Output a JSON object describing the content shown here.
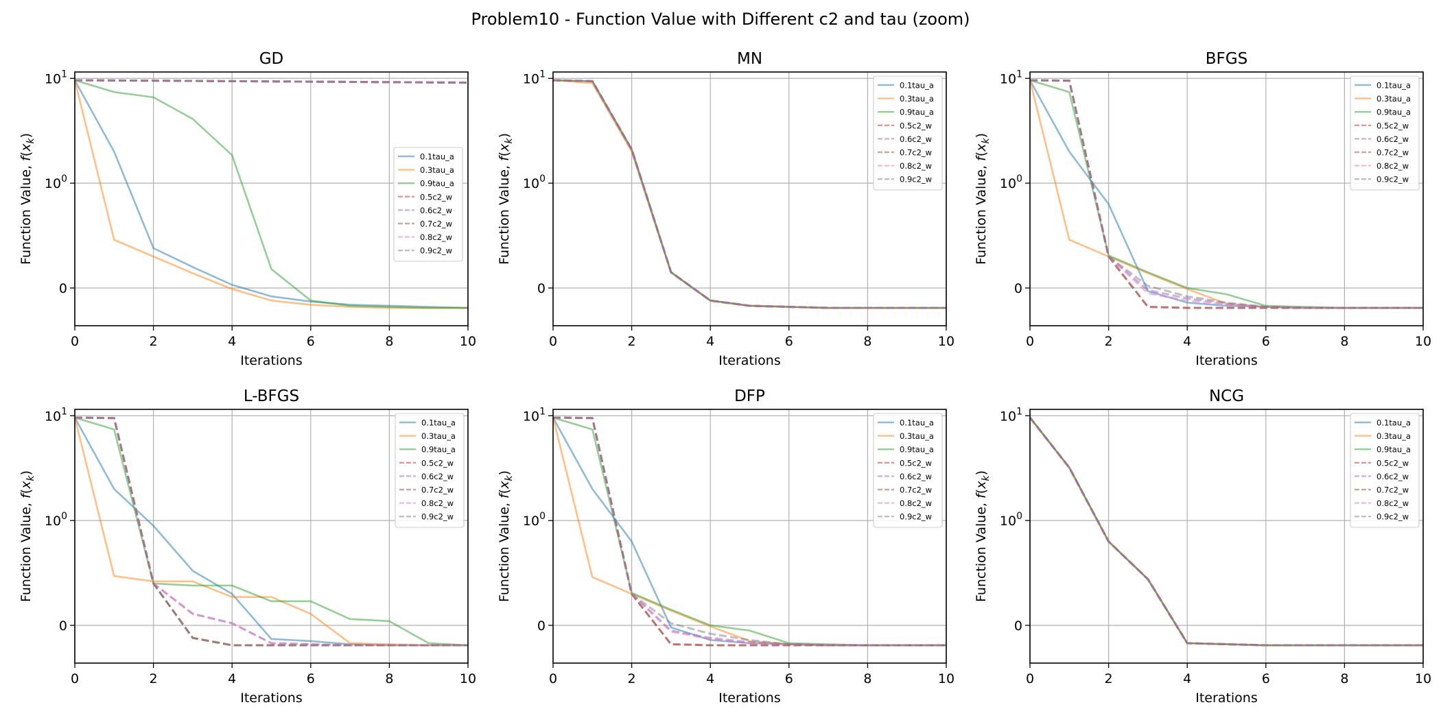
{
  "figure": {
    "title": "Problem10 - Function Value with Different c2 and tau (zoom)"
  },
  "colors": {
    "0.1tau_a": "#1f77b4",
    "0.3tau_a": "#ff7f0e",
    "0.9tau_a": "#2ca02c",
    "0.5c2_w": "#d62728",
    "0.6c2_w": "#9467bd",
    "0.7c2_w": "#8c564b",
    "0.8c2_w": "#e377c2",
    "0.9c2_w": "#7f7f7f"
  },
  "chart_data": [
    {
      "type": "line",
      "title": "GD",
      "xlabel": "Iterations",
      "ylabel": "Function Value, f(x_k)",
      "yscale": "symlog",
      "xlim": [
        0,
        10
      ],
      "xticks": [
        "0",
        "2",
        "4",
        "6",
        "8",
        "10"
      ],
      "yticks": [
        "0",
        "10^0",
        "10^1"
      ],
      "grid": true,
      "legend": "center-right",
      "x": [
        0,
        1,
        2,
        3,
        4,
        5,
        6,
        7,
        8,
        9,
        10
      ],
      "series": [
        {
          "name": "0.1tau_a",
          "style": "solid",
          "values": [
            9.6,
            2.0,
            0.38,
            0.2,
            0.03,
            -0.08,
            -0.13,
            -0.16,
            -0.17,
            -0.18,
            -0.19
          ]
        },
        {
          "name": "0.3tau_a",
          "style": "solid",
          "values": [
            9.6,
            0.46,
            0.3,
            0.14,
            -0.01,
            -0.12,
            -0.16,
            -0.18,
            -0.19,
            -0.19,
            -0.19
          ]
        },
        {
          "name": "0.9tau_a",
          "style": "solid",
          "values": [
            9.6,
            7.4,
            6.6,
            4.1,
            1.85,
            0.18,
            -0.12,
            -0.17,
            -0.18,
            -0.19,
            -0.19
          ]
        },
        {
          "name": "0.5c2_w",
          "style": "dashed",
          "values": [
            9.6,
            9.55,
            9.5,
            9.45,
            9.4,
            9.35,
            9.3,
            9.25,
            9.2,
            9.15,
            9.1
          ]
        },
        {
          "name": "0.6c2_w",
          "style": "dashed",
          "values": [
            9.6,
            9.55,
            9.5,
            9.45,
            9.4,
            9.35,
            9.3,
            9.25,
            9.2,
            9.15,
            9.1
          ]
        },
        {
          "name": "0.7c2_w",
          "style": "dashed",
          "values": [
            9.6,
            9.55,
            9.5,
            9.45,
            9.4,
            9.35,
            9.3,
            9.25,
            9.2,
            9.15,
            9.1
          ]
        },
        {
          "name": "0.8c2_w",
          "style": "dashed",
          "values": [
            9.6,
            9.55,
            9.5,
            9.45,
            9.4,
            9.35,
            9.3,
            9.25,
            9.2,
            9.15,
            9.1
          ]
        },
        {
          "name": "0.9c2_w",
          "style": "dashed",
          "values": [
            9.6,
            9.55,
            9.5,
            9.45,
            9.4,
            9.35,
            9.3,
            9.25,
            9.2,
            9.15,
            9.1
          ]
        }
      ]
    },
    {
      "type": "line",
      "title": "MN",
      "xlabel": "Iterations",
      "ylabel": "Function Value, f(x_k)",
      "yscale": "symlog",
      "xlim": [
        0,
        10
      ],
      "xticks": [
        "0",
        "2",
        "4",
        "6",
        "8",
        "10"
      ],
      "yticks": [
        "0",
        "10^0",
        "10^1"
      ],
      "grid": true,
      "legend": "top-right",
      "x": [
        0,
        1,
        2,
        3,
        4,
        5,
        6,
        7,
        8,
        9,
        10
      ],
      "series": [
        {
          "name": "0.1tau_a",
          "style": "solid",
          "values": [
            9.6,
            9.4,
            2.1,
            0.15,
            -0.12,
            -0.17,
            -0.18,
            -0.19,
            -0.19,
            -0.19,
            -0.19
          ]
        },
        {
          "name": "0.3tau_a",
          "style": "solid",
          "values": [
            9.6,
            9.0,
            2.0,
            0.15,
            -0.12,
            -0.17,
            -0.18,
            -0.19,
            -0.19,
            -0.19,
            -0.19
          ]
        },
        {
          "name": "0.9tau_a",
          "style": "solid",
          "values": [
            9.6,
            9.4,
            2.1,
            0.15,
            -0.12,
            -0.17,
            -0.18,
            -0.19,
            -0.19,
            -0.19,
            -0.19
          ]
        },
        {
          "name": "0.5c2_w",
          "style": "dashed",
          "values": [
            9.6,
            9.4,
            2.1,
            0.15,
            -0.12,
            -0.17,
            -0.18,
            -0.19,
            -0.19,
            -0.19,
            -0.19
          ]
        },
        {
          "name": "0.6c2_w",
          "style": "dashed",
          "values": [
            9.6,
            9.4,
            2.1,
            0.15,
            -0.12,
            -0.17,
            -0.18,
            -0.19,
            -0.19,
            -0.19,
            -0.19
          ]
        },
        {
          "name": "0.7c2_w",
          "style": "dashed",
          "values": [
            9.6,
            9.4,
            2.1,
            0.15,
            -0.12,
            -0.17,
            -0.18,
            -0.19,
            -0.19,
            -0.19,
            -0.19
          ]
        },
        {
          "name": "0.8c2_w",
          "style": "dashed",
          "values": [
            9.6,
            9.4,
            2.1,
            0.15,
            -0.12,
            -0.17,
            -0.18,
            -0.19,
            -0.19,
            -0.19,
            -0.19
          ]
        },
        {
          "name": "0.9c2_w",
          "style": "dashed",
          "values": [
            9.6,
            9.4,
            2.1,
            0.15,
            -0.12,
            -0.17,
            -0.18,
            -0.19,
            -0.19,
            -0.19,
            -0.19
          ]
        }
      ]
    },
    {
      "type": "line",
      "title": "BFGS",
      "xlabel": "Iterations",
      "ylabel": "Function Value, f(x_k)",
      "yscale": "symlog",
      "xlim": [
        0,
        10
      ],
      "xticks": [
        "0",
        "2",
        "4",
        "6",
        "8",
        "10"
      ],
      "yticks": [
        "0",
        "10^0",
        "10^1"
      ],
      "grid": true,
      "legend": "top-right",
      "x": [
        0,
        1,
        2,
        3,
        4,
        5,
        6,
        7,
        8,
        9,
        10
      ],
      "series": [
        {
          "name": "0.1tau_a",
          "style": "solid",
          "values": [
            9.6,
            2.0,
            0.8,
            -0.03,
            -0.14,
            -0.17,
            -0.18,
            -0.19,
            -0.19,
            -0.19,
            -0.19
          ]
        },
        {
          "name": "0.3tau_a",
          "style": "solid",
          "values": [
            9.6,
            0.46,
            0.3,
            0.14,
            -0.01,
            -0.15,
            -0.18,
            -0.19,
            -0.19,
            -0.19,
            -0.19
          ]
        },
        {
          "name": "0.9tau_a",
          "style": "solid",
          "values": [
            9.6,
            7.4,
            0.31,
            0.15,
            0.0,
            -0.06,
            -0.17,
            -0.18,
            -0.19,
            -0.19,
            -0.19
          ]
        },
        {
          "name": "0.5c2_w",
          "style": "dashed",
          "values": [
            9.6,
            9.5,
            0.3,
            -0.18,
            -0.19,
            -0.19,
            -0.19,
            -0.19,
            -0.19,
            -0.19,
            -0.19
          ]
        },
        {
          "name": "0.6c2_w",
          "style": "dashed",
          "values": [
            9.6,
            9.5,
            0.3,
            -0.02,
            -0.1,
            -0.15,
            -0.18,
            -0.19,
            -0.19,
            -0.19,
            -0.19
          ]
        },
        {
          "name": "0.7c2_w",
          "style": "dashed",
          "values": [
            9.6,
            9.5,
            0.3,
            -0.18,
            -0.19,
            -0.19,
            -0.19,
            -0.19,
            -0.19,
            -0.19,
            -0.19
          ]
        },
        {
          "name": "0.8c2_w",
          "style": "dashed",
          "values": [
            9.6,
            9.5,
            0.3,
            -0.05,
            -0.12,
            -0.16,
            -0.18,
            -0.19,
            -0.19,
            -0.19,
            -0.19
          ]
        },
        {
          "name": "0.9c2_w",
          "style": "dashed",
          "values": [
            9.6,
            9.5,
            0.3,
            0.02,
            -0.08,
            -0.14,
            -0.18,
            -0.19,
            -0.19,
            -0.19,
            -0.19
          ]
        }
      ]
    },
    {
      "type": "line",
      "title": "L-BFGS",
      "xlabel": "Iterations",
      "ylabel": "Function Value, f(x_k)",
      "yscale": "symlog",
      "xlim": [
        0,
        10
      ],
      "xticks": [
        "0",
        "2",
        "4",
        "6",
        "8",
        "10"
      ],
      "yticks": [
        "0",
        "10^0",
        "10^1"
      ],
      "grid": true,
      "legend": "top-right",
      "x": [
        0,
        1,
        2,
        3,
        4,
        5,
        6,
        7,
        8,
        9,
        10
      ],
      "series": [
        {
          "name": "0.1tau_a",
          "style": "solid",
          "values": [
            9.6,
            2.0,
            0.95,
            0.52,
            0.3,
            -0.13,
            -0.15,
            -0.18,
            -0.19,
            -0.19,
            -0.19
          ]
        },
        {
          "name": "0.3tau_a",
          "style": "solid",
          "values": [
            9.6,
            0.47,
            0.42,
            0.42,
            0.27,
            0.27,
            0.11,
            -0.17,
            -0.18,
            -0.19,
            -0.19
          ]
        },
        {
          "name": "0.9tau_a",
          "style": "solid",
          "values": [
            9.6,
            7.4,
            0.4,
            0.38,
            0.38,
            0.23,
            0.23,
            0.06,
            0.04,
            -0.17,
            -0.19
          ]
        },
        {
          "name": "0.5c2_w",
          "style": "dashed",
          "values": [
            9.6,
            9.5,
            0.4,
            -0.12,
            -0.19,
            -0.19,
            -0.19,
            -0.19,
            -0.19,
            -0.19,
            -0.19
          ]
        },
        {
          "name": "0.6c2_w",
          "style": "dashed",
          "values": [
            9.6,
            9.5,
            0.4,
            0.11,
            0.02,
            -0.17,
            -0.18,
            -0.19,
            -0.19,
            -0.19,
            -0.19
          ]
        },
        {
          "name": "0.7c2_w",
          "style": "dashed",
          "values": [
            9.6,
            9.5,
            0.4,
            -0.12,
            -0.19,
            -0.19,
            -0.19,
            -0.19,
            -0.19,
            -0.19,
            -0.19
          ]
        },
        {
          "name": "0.8c2_w",
          "style": "dashed",
          "values": [
            9.6,
            9.5,
            0.4,
            0.11,
            0.02,
            -0.17,
            -0.18,
            -0.19,
            -0.19,
            -0.19,
            -0.19
          ]
        },
        {
          "name": "0.9c2_w",
          "style": "dashed",
          "values": [
            9.6,
            9.5,
            0.4,
            -0.12,
            -0.19,
            -0.19,
            -0.19,
            -0.19,
            -0.19,
            -0.19,
            -0.19
          ]
        }
      ]
    },
    {
      "type": "line",
      "title": "DFP",
      "xlabel": "Iterations",
      "ylabel": "Function Value, f(x_k)",
      "yscale": "symlog",
      "xlim": [
        0,
        10
      ],
      "xticks": [
        "0",
        "2",
        "4",
        "6",
        "8",
        "10"
      ],
      "yticks": [
        "0",
        "10^0",
        "10^1"
      ],
      "grid": true,
      "legend": "top-right",
      "x": [
        0,
        1,
        2,
        3,
        4,
        5,
        6,
        7,
        8,
        9,
        10
      ],
      "series": [
        {
          "name": "0.1tau_a",
          "style": "solid",
          "values": [
            9.6,
            2.0,
            0.8,
            -0.02,
            -0.14,
            -0.17,
            -0.18,
            -0.19,
            -0.19,
            -0.19,
            -0.19
          ]
        },
        {
          "name": "0.3tau_a",
          "style": "solid",
          "values": [
            9.6,
            0.46,
            0.3,
            0.14,
            -0.01,
            -0.15,
            -0.18,
            -0.19,
            -0.19,
            -0.19,
            -0.19
          ]
        },
        {
          "name": "0.9tau_a",
          "style": "solid",
          "values": [
            9.6,
            7.4,
            0.31,
            0.15,
            0.0,
            -0.05,
            -0.17,
            -0.18,
            -0.19,
            -0.19,
            -0.19
          ]
        },
        {
          "name": "0.5c2_w",
          "style": "dashed",
          "values": [
            9.6,
            9.5,
            0.3,
            -0.18,
            -0.19,
            -0.19,
            -0.19,
            -0.19,
            -0.19,
            -0.19,
            -0.19
          ]
        },
        {
          "name": "0.6c2_w",
          "style": "dashed",
          "values": [
            9.6,
            9.5,
            0.3,
            -0.05,
            -0.12,
            -0.16,
            -0.18,
            -0.19,
            -0.19,
            -0.19,
            -0.19
          ]
        },
        {
          "name": "0.7c2_w",
          "style": "dashed",
          "values": [
            9.6,
            9.5,
            0.3,
            -0.18,
            -0.19,
            -0.19,
            -0.19,
            -0.19,
            -0.19,
            -0.19,
            -0.19
          ]
        },
        {
          "name": "0.8c2_w",
          "style": "dashed",
          "values": [
            9.6,
            9.5,
            0.3,
            -0.06,
            -0.13,
            -0.17,
            -0.18,
            -0.19,
            -0.19,
            -0.19,
            -0.19
          ]
        },
        {
          "name": "0.9c2_w",
          "style": "dashed",
          "values": [
            9.6,
            9.5,
            0.3,
            0.02,
            -0.08,
            -0.14,
            -0.18,
            -0.19,
            -0.19,
            -0.19,
            -0.19
          ]
        }
      ]
    },
    {
      "type": "line",
      "title": "NCG",
      "xlabel": "Iterations",
      "ylabel": "Function Value, f(x_k)",
      "yscale": "symlog",
      "xlim": [
        0,
        10
      ],
      "xticks": [
        "0",
        "2",
        "4",
        "6",
        "8",
        "10"
      ],
      "yticks": [
        "0",
        "10^0",
        "10^1"
      ],
      "grid": true,
      "legend": "top-right",
      "x": [
        0,
        1,
        2,
        3,
        4,
        5,
        6,
        7,
        8,
        9,
        10
      ],
      "series": [
        {
          "name": "0.1tau_a",
          "style": "solid",
          "values": [
            9.6,
            3.2,
            0.8,
            0.44,
            -0.17,
            -0.18,
            -0.19,
            -0.19,
            -0.19,
            -0.19,
            -0.19
          ]
        },
        {
          "name": "0.3tau_a",
          "style": "solid",
          "values": [
            9.6,
            3.2,
            0.8,
            0.44,
            -0.17,
            -0.18,
            -0.19,
            -0.19,
            -0.19,
            -0.19,
            -0.19
          ]
        },
        {
          "name": "0.9tau_a",
          "style": "solid",
          "values": [
            9.6,
            3.2,
            0.8,
            0.44,
            -0.17,
            -0.18,
            -0.19,
            -0.19,
            -0.19,
            -0.19,
            -0.19
          ]
        },
        {
          "name": "0.5c2_w",
          "style": "dashed",
          "values": [
            9.6,
            3.2,
            0.8,
            0.44,
            -0.17,
            -0.18,
            -0.19,
            -0.19,
            -0.19,
            -0.19,
            -0.19
          ]
        },
        {
          "name": "0.6c2_w",
          "style": "dashed",
          "values": [
            9.6,
            3.2,
            0.8,
            0.44,
            -0.17,
            -0.18,
            -0.19,
            -0.19,
            -0.19,
            -0.19,
            -0.19
          ]
        },
        {
          "name": "0.7c2_w",
          "style": "dashed",
          "values": [
            9.6,
            3.2,
            0.8,
            0.44,
            -0.17,
            -0.18,
            -0.19,
            -0.19,
            -0.19,
            -0.19,
            -0.19
          ]
        },
        {
          "name": "0.8c2_w",
          "style": "dashed",
          "values": [
            9.6,
            3.2,
            0.8,
            0.44,
            -0.17,
            -0.18,
            -0.19,
            -0.19,
            -0.19,
            -0.19,
            -0.19
          ]
        },
        {
          "name": "0.9c2_w",
          "style": "dashed",
          "values": [
            9.6,
            3.2,
            0.8,
            0.44,
            -0.17,
            -0.18,
            -0.19,
            -0.19,
            -0.19,
            -0.19,
            -0.19
          ]
        }
      ]
    }
  ]
}
